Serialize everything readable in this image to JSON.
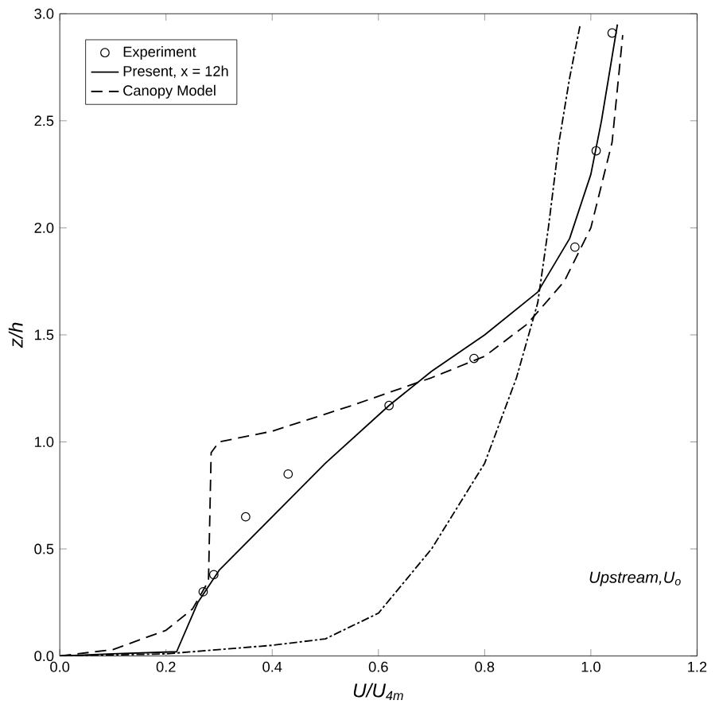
{
  "chart_data": {
    "type": "line",
    "xlabel": "U/U$_{4m}$",
    "ylabel": "z/h",
    "annotations": [
      "Upstream,U$_{o}$"
    ],
    "xlim": [
      0,
      1.2
    ],
    "ylim": [
      0,
      3
    ],
    "xticks": [
      {
        "value": 0,
        "label": "0.0"
      },
      {
        "value": 0.2,
        "label": "0.2"
      },
      {
        "value": 0.4,
        "label": "0.4"
      },
      {
        "value": 0.6,
        "label": "0.6"
      },
      {
        "value": 0.8,
        "label": "0.8"
      },
      {
        "value": 1.0,
        "label": "1.0"
      },
      {
        "value": 1.2,
        "label": "1.2"
      }
    ],
    "yticks": [
      {
        "value": 0,
        "label": "0.0"
      },
      {
        "value": 0.5,
        "label": "0.5"
      },
      {
        "value": 1.0,
        "label": "1.0"
      },
      {
        "value": 1.5,
        "label": "1.5"
      },
      {
        "value": 2.0,
        "label": "2.0"
      },
      {
        "value": 2.5,
        "label": "2.5"
      },
      {
        "value": 3.0,
        "label": "3.0"
      }
    ],
    "legend": "top left",
    "grid": false,
    "series": [
      {
        "name": "Experiment",
        "type": "scatter",
        "marker": "circle",
        "color": "#000000",
        "x": [
          0.27,
          0.29,
          0.35,
          0.43,
          0.62,
          0.78,
          0.97,
          1.01,
          1.04
        ],
        "values": [
          0.3,
          0.38,
          0.65,
          0.85,
          1.17,
          1.39,
          1.91,
          2.36,
          2.91
        ]
      },
      {
        "name": "Present, x = 12h",
        "line_style": "solid",
        "color": "#000000",
        "x": [
          0,
          0.1,
          0.22,
          0.26,
          0.3,
          0.4,
          0.5,
          0.62,
          0.7,
          0.8,
          0.9,
          0.96,
          1.0,
          1.02,
          1.04,
          1.05
        ],
        "values": [
          0,
          0.01,
          0.02,
          0.25,
          0.4,
          0.65,
          0.9,
          1.17,
          1.33,
          1.5,
          1.7,
          1.95,
          2.25,
          2.5,
          2.8,
          2.95
        ]
      },
      {
        "name": "Canopy Model",
        "line_style": "dashed",
        "color": "#000000",
        "x": [
          0,
          0.1,
          0.2,
          0.25,
          0.28,
          0.285,
          0.3,
          0.4,
          0.55,
          0.7,
          0.8,
          0.88,
          0.95,
          1.0,
          1.04,
          1.06
        ],
        "values": [
          0,
          0.03,
          0.12,
          0.22,
          0.35,
          0.95,
          1.0,
          1.05,
          1.17,
          1.3,
          1.4,
          1.55,
          1.75,
          2.0,
          2.4,
          2.9
        ]
      },
      {
        "line_style": "dashdot",
        "color": "#000000",
        "x": [
          0,
          0.2,
          0.4,
          0.5,
          0.6,
          0.7,
          0.8,
          0.86,
          0.9,
          0.92,
          0.94,
          0.96,
          0.98
        ],
        "values": [
          0,
          0.01,
          0.05,
          0.08,
          0.2,
          0.5,
          0.9,
          1.3,
          1.65,
          2.0,
          2.4,
          2.7,
          2.95
        ]
      }
    ]
  }
}
